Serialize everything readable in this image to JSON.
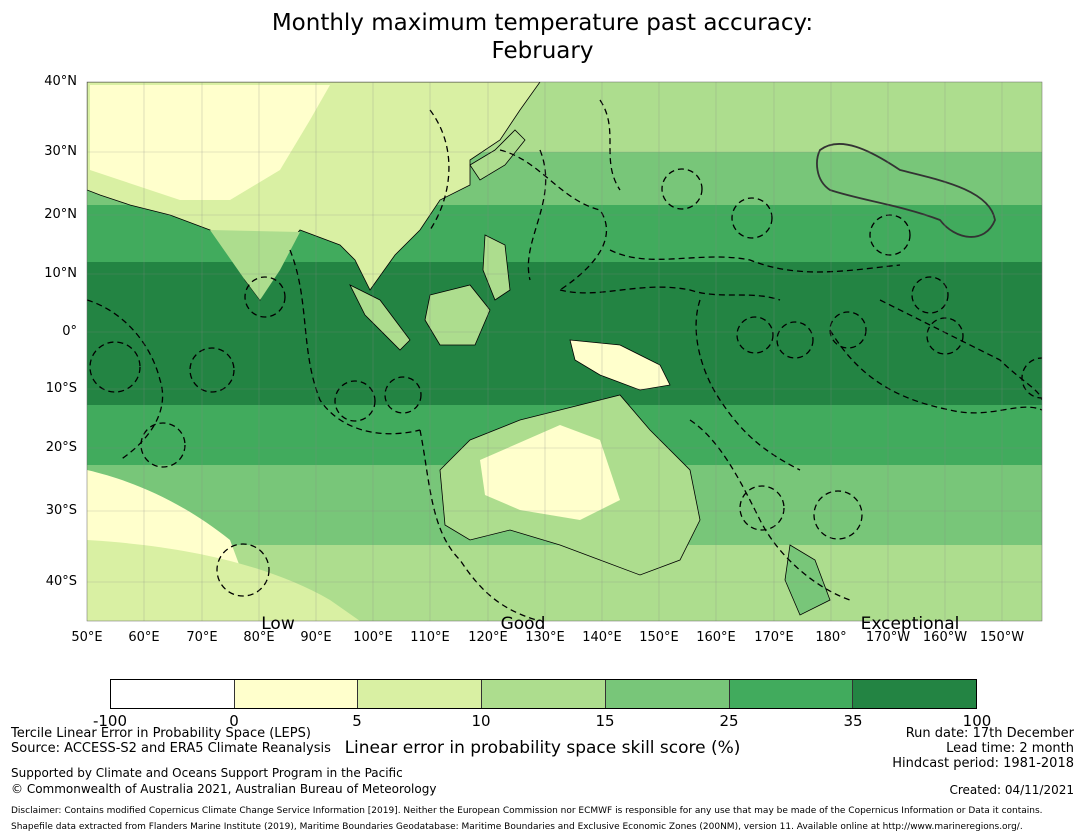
{
  "title": {
    "line1": "Monthly maximum temperature past accuracy:",
    "line2": "February"
  },
  "map": {
    "lat_labels": [
      "40°N",
      "30°N",
      "20°N",
      "10°N",
      "0°",
      "10°S",
      "20°S",
      "30°S",
      "40°S"
    ],
    "lon_labels": [
      "50°E",
      "60°E",
      "70°E",
      "80°E",
      "90°E",
      "100°E",
      "110°E",
      "120°E",
      "130°E",
      "140°E",
      "150°E",
      "160°E",
      "170°E",
      "180°",
      "170°W",
      "160°W",
      "150°W"
    ],
    "category_labels": {
      "low": "Low",
      "good": "Good",
      "exceptional": "Exceptional"
    },
    "land_color": "#ffffff",
    "coast_color": "#000000"
  },
  "colorbar": {
    "colors": [
      "#ffffff",
      "#ffffcc",
      "#d9f0a3",
      "#addd8e",
      "#78c679",
      "#41ab5d",
      "#238443"
    ],
    "ticks": [
      "-100",
      "0",
      "5",
      "10",
      "15",
      "25",
      "35",
      "100"
    ],
    "label": "Linear error in probability space skill score (%)"
  },
  "info_left": {
    "line1": "Tercile Linear Error in Probability Space (LEPS)",
    "line2": "Source: ACCESS-S2 and ERA5 Climate Reanalysis",
    "support1": "Supported by Climate and Oceans Support Program in the Pacific",
    "support2": "© Commonwealth of Australia 2021, Australian Bureau of Meteorology"
  },
  "info_right": {
    "run_date": "Run date: 17th December",
    "lead_time": "Lead time: 2 month",
    "hindcast": "Hindcast period: 1981-2018",
    "created": "Created: 04/11/2021"
  },
  "disclaimer": {
    "line1": "Disclaimer: Contains modified Copernicus Climate Change Service Information [2019]. Neither the European Commission nor ECMWF is responsible for any use that may be made of the Copernicus Information or Data it contains.",
    "line2": "Shapefile data extracted from Flanders Marine Institute (2019), Maritime Boundaries Geodatabase: Maritime Boundaries and Exclusive Economic Zones (200NM), version 11. Available online at http://www.marineregions.org/."
  }
}
